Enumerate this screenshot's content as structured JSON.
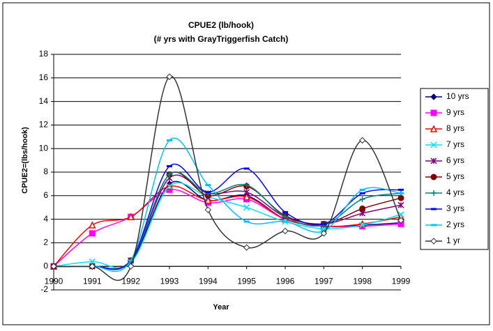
{
  "chart_data": {
    "type": "line",
    "title": "CPUE2 (lb/hook)",
    "subtitle": "(# yrs with GrayTriggerfish Catch)",
    "x_label": "Year",
    "y_label": "CPUE2=(lbs/hook)",
    "x": [
      1990,
      1991,
      1992,
      1993,
      1994,
      1995,
      1996,
      1997,
      1998,
      1999
    ],
    "xlim": [
      1990,
      1999
    ],
    "xticks": [
      1990,
      1991,
      1992,
      1993,
      1994,
      1995,
      1996,
      1997,
      1998,
      1999
    ],
    "ylim": [
      -2,
      18
    ],
    "yticks": [
      -2,
      0,
      2,
      4,
      6,
      8,
      10,
      12,
      14,
      16,
      18
    ],
    "grid": true,
    "smooth": true,
    "legend": "right",
    "series": [
      {
        "name": "10 yrs",
        "color": "#000080",
        "marker": "diamond",
        "values": [
          0,
          0,
          0.4,
          7.0,
          5.6,
          6.0,
          4.0,
          3.4,
          3.5,
          3.7
        ]
      },
      {
        "name": "9 yrs",
        "color": "#FF00FF",
        "marker": "square",
        "values": [
          0,
          2.8,
          4.2,
          6.5,
          5.4,
          5.7,
          4.0,
          3.4,
          3.4,
          3.6
        ]
      },
      {
        "name": "8 yrs",
        "color": "#FF0000",
        "marker": "triangle",
        "values": [
          0,
          3.5,
          4.2,
          6.8,
          5.6,
          5.9,
          4.0,
          3.4,
          3.6,
          4.2
        ]
      },
      {
        "name": "7 yrs",
        "color": "#00E0FF",
        "marker": "x",
        "values": [
          0,
          0.4,
          0.3,
          6.8,
          5.9,
          5.0,
          3.8,
          3.2,
          3.5,
          4.4
        ]
      },
      {
        "name": "6 yrs",
        "color": "#800080",
        "marker": "star",
        "values": [
          0,
          0,
          0.5,
          7.5,
          6.2,
          6.3,
          4.2,
          3.6,
          4.5,
          5.2
        ]
      },
      {
        "name": "5 yrs",
        "color": "#800000",
        "marker": "circle",
        "values": [
          0,
          0,
          0.5,
          7.8,
          6.0,
          6.8,
          4.3,
          3.6,
          4.9,
          5.8
        ]
      },
      {
        "name": "4 yrs",
        "color": "#008080",
        "marker": "plus",
        "values": [
          0,
          0,
          0.5,
          7.8,
          6.2,
          6.9,
          4.2,
          3.5,
          5.7,
          6.2
        ]
      },
      {
        "name": "3 yrs",
        "color": "#0000FF",
        "marker": "dash",
        "values": [
          0,
          0,
          0.5,
          8.5,
          6.3,
          8.3,
          4.6,
          3.6,
          6.2,
          6.5
        ]
      },
      {
        "name": "2 yrs",
        "color": "#00BFFF",
        "marker": "dash",
        "values": [
          0,
          0,
          0.5,
          10.7,
          6.9,
          3.8,
          3.8,
          3.0,
          6.5,
          6.2
        ]
      },
      {
        "name": "1 yr",
        "color": "#333333",
        "marker": "hollow-diamond",
        "values": [
          0,
          0,
          0,
          16.1,
          4.8,
          1.6,
          3.0,
          2.8,
          10.7,
          3.9
        ]
      }
    ]
  }
}
